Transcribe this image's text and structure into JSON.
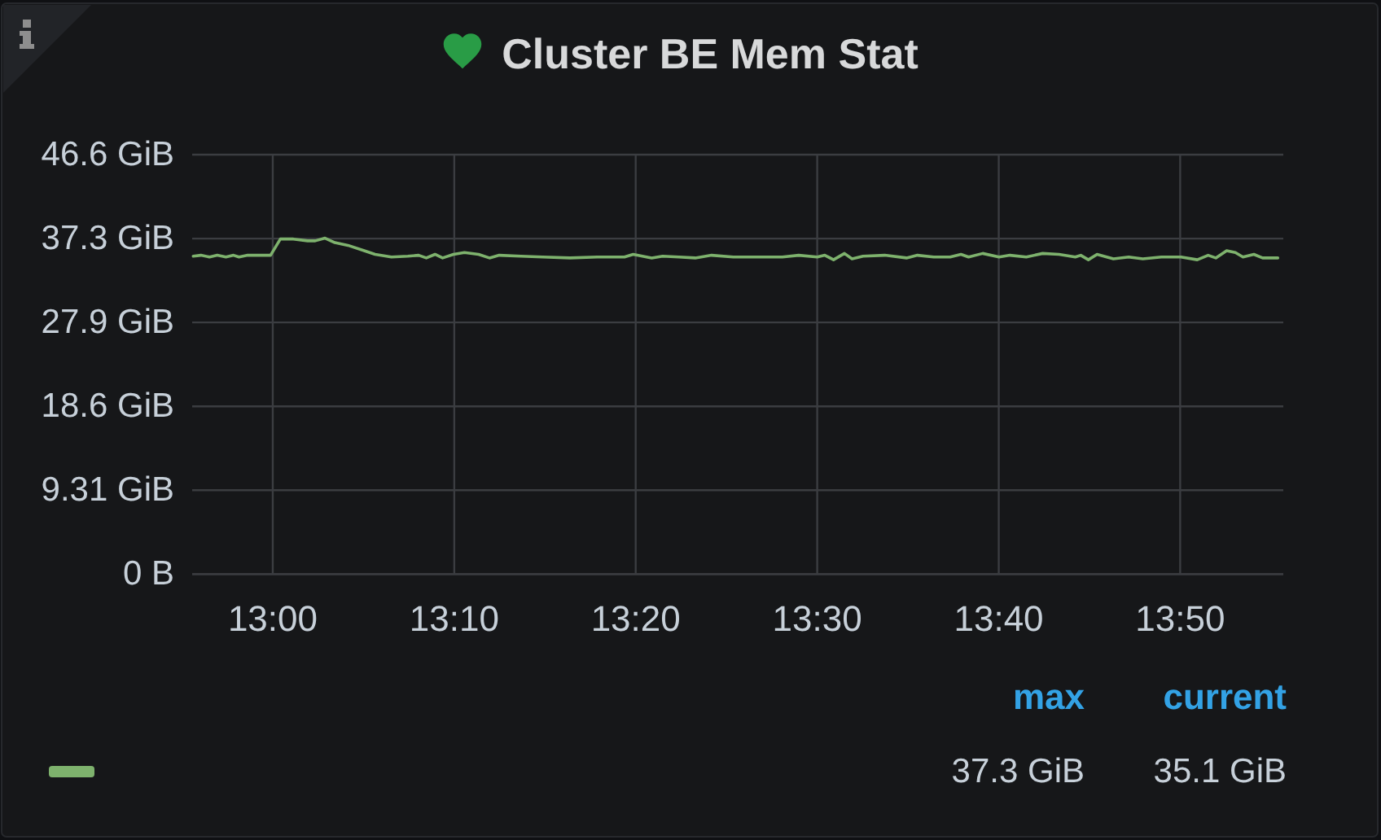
{
  "chart_data": {
    "type": "line",
    "title": "Cluster BE Mem Stat",
    "xlim": [
      12.926,
      13.928
    ],
    "xticks": [
      {
        "value": 13,
        "label": "13:00"
      },
      {
        "value": 13.1667,
        "label": "13:10"
      },
      {
        "value": 13.3333,
        "label": "13:20"
      },
      {
        "value": 13.5,
        "label": "13:30"
      },
      {
        "value": 13.6667,
        "label": "13:40"
      },
      {
        "value": 13.8333,
        "label": "13:50"
      }
    ],
    "ylim": [
      0,
      46.566
    ],
    "yticks": [
      {
        "value": 0,
        "label": "0 B"
      },
      {
        "value": 9.313,
        "label": "9.31 GiB"
      },
      {
        "value": 18.626,
        "label": "18.6 GiB"
      },
      {
        "value": 27.94,
        "label": "27.9 GiB"
      },
      {
        "value": 37.253,
        "label": "37.3 GiB"
      },
      {
        "value": 46.566,
        "label": "46.6 GiB"
      }
    ],
    "grid": true,
    "line_style": "solid",
    "annotations": [
      "max",
      "current",
      "37.3 GiB",
      "35.1 GiB"
    ],
    "series": [
      {
        "color": "#7eb26d",
        "x": [
          12.927,
          12.934,
          12.942,
          12.949,
          12.957,
          12.964,
          12.969,
          12.977,
          12.984,
          12.998,
          13.007,
          13.019,
          13.032,
          13.039,
          13.048,
          13.057,
          13.069,
          13.084,
          13.094,
          13.109,
          13.124,
          13.134,
          13.141,
          13.149,
          13.156,
          13.166,
          13.176,
          13.189,
          13.199,
          13.208,
          13.228,
          13.248,
          13.273,
          13.298,
          13.323,
          13.331,
          13.348,
          13.358,
          13.373,
          13.388,
          13.403,
          13.423,
          13.438,
          13.468,
          13.483,
          13.5,
          13.507,
          13.515,
          13.525,
          13.532,
          13.542,
          13.562,
          13.582,
          13.592,
          13.607,
          13.622,
          13.632,
          13.639,
          13.652,
          13.667,
          13.677,
          13.692,
          13.707,
          13.722,
          13.737,
          13.742,
          13.749,
          13.757,
          13.772,
          13.786,
          13.799,
          13.816,
          13.834,
          13.849,
          13.859,
          13.866,
          13.876,
          13.884,
          13.891,
          13.901,
          13.909,
          13.923
        ],
        "values": [
          35.3,
          35.4,
          35.2,
          35.4,
          35.2,
          35.4,
          35.2,
          35.4,
          35.4,
          35.4,
          37.2,
          37.2,
          37.0,
          37.0,
          37.3,
          36.8,
          36.5,
          35.9,
          35.5,
          35.2,
          35.3,
          35.4,
          35.1,
          35.5,
          35.1,
          35.5,
          35.7,
          35.5,
          35.1,
          35.4,
          35.3,
          35.2,
          35.1,
          35.2,
          35.2,
          35.5,
          35.1,
          35.3,
          35.2,
          35.1,
          35.4,
          35.2,
          35.2,
          35.2,
          35.4,
          35.2,
          35.4,
          34.9,
          35.6,
          35.0,
          35.3,
          35.4,
          35.1,
          35.4,
          35.2,
          35.2,
          35.5,
          35.2,
          35.6,
          35.2,
          35.4,
          35.2,
          35.6,
          35.5,
          35.2,
          35.4,
          34.9,
          35.5,
          35.0,
          35.2,
          35.0,
          35.2,
          35.2,
          34.9,
          35.4,
          35.1,
          35.9,
          35.7,
          35.2,
          35.5,
          35.1,
          35.1
        ]
      }
    ]
  }
}
